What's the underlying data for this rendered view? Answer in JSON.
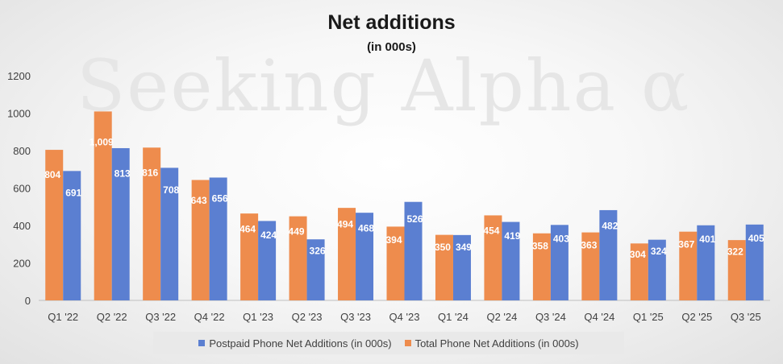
{
  "colors": {
    "postpaid": "#5b7fd1",
    "total": "#ee8c4d",
    "label_text": "#ffffff",
    "axis_text": "#404040",
    "axis_line": "#bfbfbf"
  },
  "watermark_text": "Seeking Alpha α",
  "chart_data": {
    "type": "bar",
    "title": "Net additions",
    "subtitle": "(in 000s)",
    "xlabel": "",
    "ylabel": "",
    "ylim": [
      0,
      1200
    ],
    "yticks": [
      0,
      200,
      400,
      600,
      800,
      1000,
      1200
    ],
    "grid": false,
    "legend_position": "bottom",
    "categories": [
      "Q1 '22",
      "Q2 '22",
      "Q3 '22",
      "Q4 '22",
      "Q1 '23",
      "Q2 '23",
      "Q3 '23",
      "Q4 '23",
      "Q1 '24",
      "Q2 '24",
      "Q3 '24",
      "Q4 '24",
      "Q1 '25",
      "Q2 '25",
      "Q3 '25"
    ],
    "series": [
      {
        "name": "Total Phone Net Additions (in 000s)",
        "values": [
          804,
          1009,
          816,
          643,
          464,
          449,
          494,
          394,
          350,
          454,
          358,
          363,
          304,
          367,
          322
        ],
        "labels": [
          "804",
          "1,009",
          "816",
          "643",
          "464",
          "449",
          "494",
          "394",
          "350",
          "454",
          "358",
          "363",
          "304",
          "367",
          "322"
        ]
      },
      {
        "name": "Postpaid Phone Net Additions (in 000s)",
        "values": [
          691,
          813,
          708,
          656,
          424,
          326,
          468,
          526,
          349,
          419,
          403,
          482,
          324,
          401,
          405
        ],
        "labels": [
          "691",
          "813",
          "708",
          "656",
          "424",
          "326",
          "468",
          "526",
          "349",
          "419",
          "403",
          "482",
          "324",
          "401",
          "405"
        ]
      }
    ]
  },
  "legend": {
    "items": [
      {
        "label": "Postpaid Phone Net Additions (in 000s)",
        "color": "#5b7fd1"
      },
      {
        "label": "Total Phone Net Additions (in 000s)",
        "color": "#ee8c4d"
      }
    ]
  }
}
